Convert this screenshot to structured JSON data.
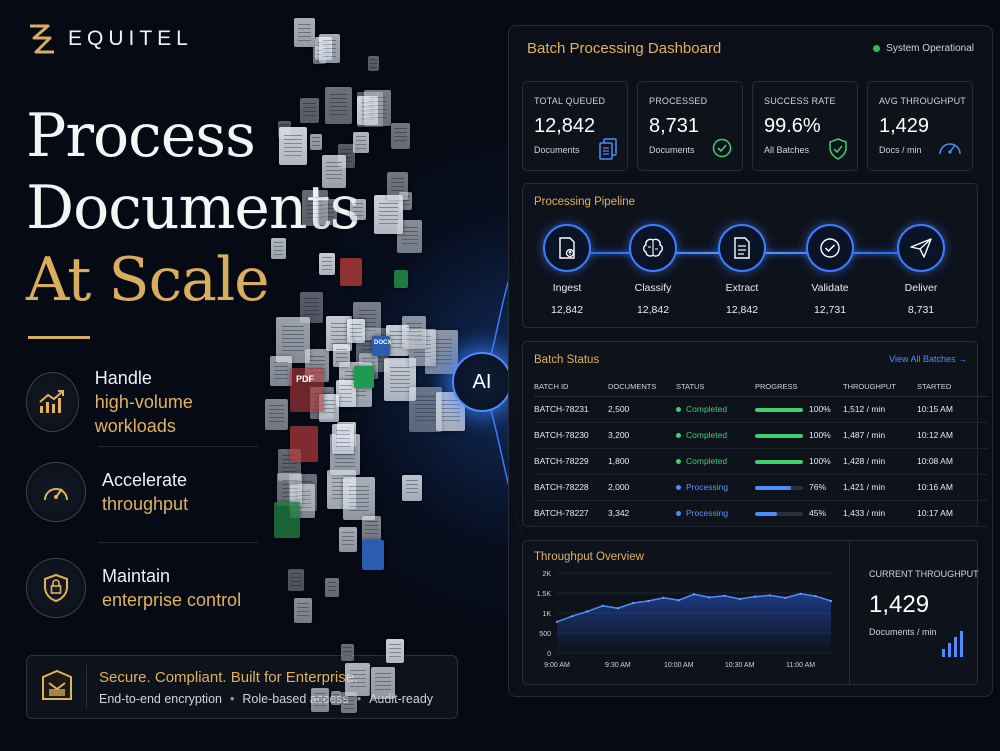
{
  "brand": {
    "name": "EQUITEL"
  },
  "headline": {
    "line1": "Process",
    "line2": "Documents",
    "line3": "At Scale"
  },
  "features": [
    {
      "title": "Handle",
      "subtitle": "high-volume workloads",
      "icon": "growth-chart-icon"
    },
    {
      "title": "Accelerate",
      "subtitle": "throughput",
      "icon": "speedometer-icon"
    },
    {
      "title": "Maintain",
      "subtitle": "enterprise control",
      "icon": "shield-lock-icon"
    }
  ],
  "secure": {
    "title": "Secure. Compliant. Built for Enterprise.",
    "items": [
      "End-to-end encryption",
      "Role-based access",
      "Audit-ready"
    ]
  },
  "doc_labels": {
    "pdf": "PDF",
    "docx": "DOCX"
  },
  "ai_label": "AI",
  "dashboard": {
    "title": "Batch Processing Dashboard",
    "status": "System Operational",
    "stats": [
      {
        "label": "TOTAL QUEUED",
        "value": "12,842",
        "sub": "Documents",
        "icon": "document-stack-icon"
      },
      {
        "label": "PROCESSED",
        "value": "8,731",
        "sub": "Documents",
        "icon": "check-circle-icon"
      },
      {
        "label": "SUCCESS RATE",
        "value": "99.6%",
        "sub": "All Batches",
        "icon": "shield-check-icon"
      },
      {
        "label": "AVG THROUGHPUT",
        "value": "1,429",
        "sub": "Docs / min",
        "icon": "gauge-icon"
      }
    ],
    "pipeline": {
      "title": "Processing Pipeline",
      "steps": [
        {
          "name": "Ingest",
          "count": "12,842",
          "icon": "document-upload-icon"
        },
        {
          "name": "Classify",
          "count": "12,842",
          "icon": "brain-icon"
        },
        {
          "name": "Extract",
          "count": "12,842",
          "icon": "document-text-icon"
        },
        {
          "name": "Validate",
          "count": "12,731",
          "icon": "check-circle-icon"
        },
        {
          "name": "Deliver",
          "count": "8,731",
          "icon": "paper-plane-icon"
        }
      ]
    },
    "batch_status": {
      "title": "Batch Status",
      "view_all": "View All Batches →",
      "columns": [
        "BATCH ID",
        "DOCUMENTS",
        "STATUS",
        "PROGRESS",
        "THROUGHPUT",
        "STARTED"
      ],
      "rows": [
        {
          "id": "BATCH-78231",
          "docs": "2,500",
          "status": "Completed",
          "progress": 100,
          "progress_label": "100%",
          "throughput": "1,512 / min",
          "started": "10:15 AM"
        },
        {
          "id": "BATCH-78230",
          "docs": "3,200",
          "status": "Completed",
          "progress": 100,
          "progress_label": "100%",
          "throughput": "1,487 / min",
          "started": "10:12 AM"
        },
        {
          "id": "BATCH-78229",
          "docs": "1,800",
          "status": "Completed",
          "progress": 100,
          "progress_label": "100%",
          "throughput": "1,428 / min",
          "started": "10:08 AM"
        },
        {
          "id": "BATCH-78228",
          "docs": "2,000",
          "status": "Processing",
          "progress": 76,
          "progress_label": "76%",
          "throughput": "1,421 / min",
          "started": "10:16 AM"
        },
        {
          "id": "BATCH-78227",
          "docs": "3,342",
          "status": "Processing",
          "progress": 45,
          "progress_label": "45%",
          "throughput": "1,433 / min",
          "started": "10:17 AM"
        }
      ]
    },
    "throughput": {
      "title": "Throughput Overview",
      "current_label": "CURRENT THROUGHPUT",
      "current_value": "1,429",
      "current_sub": "Documents / min"
    }
  },
  "colors": {
    "accent_gold": "#e0b25f",
    "accent_blue": "#4d8dff",
    "success_green": "#3fcf6e",
    "background": "#060a14"
  },
  "chart_data": {
    "type": "line",
    "title": "Throughput Overview",
    "xlabel": "",
    "ylabel": "",
    "x": [
      "9:00 AM",
      "9:07 AM",
      "9:15 AM",
      "9:22 AM",
      "9:30 AM",
      "9:37 AM",
      "9:45 AM",
      "9:52 AM",
      "10:00 AM",
      "10:07 AM",
      "10:15 AM",
      "10:22 AM",
      "10:30 AM",
      "10:37 AM",
      "10:45 AM",
      "10:52 AM",
      "11:00 AM",
      "11:07 AM",
      "11:15 AM"
    ],
    "x_ticks": [
      "9:00 AM",
      "9:30 AM",
      "10:00 AM",
      "10:30 AM",
      "11:00 AM"
    ],
    "y_ticks": [
      "0",
      "500",
      "1K",
      "1.5K",
      "2K"
    ],
    "ylim": [
      0,
      2000
    ],
    "series": [
      {
        "values": [
          780,
          920,
          1040,
          1180,
          1120,
          1250,
          1300,
          1380,
          1320,
          1470,
          1390,
          1430,
          1350,
          1410,
          1440,
          1380,
          1480,
          1420,
          1300
        ]
      }
    ],
    "grid": true,
    "legend": "none"
  }
}
